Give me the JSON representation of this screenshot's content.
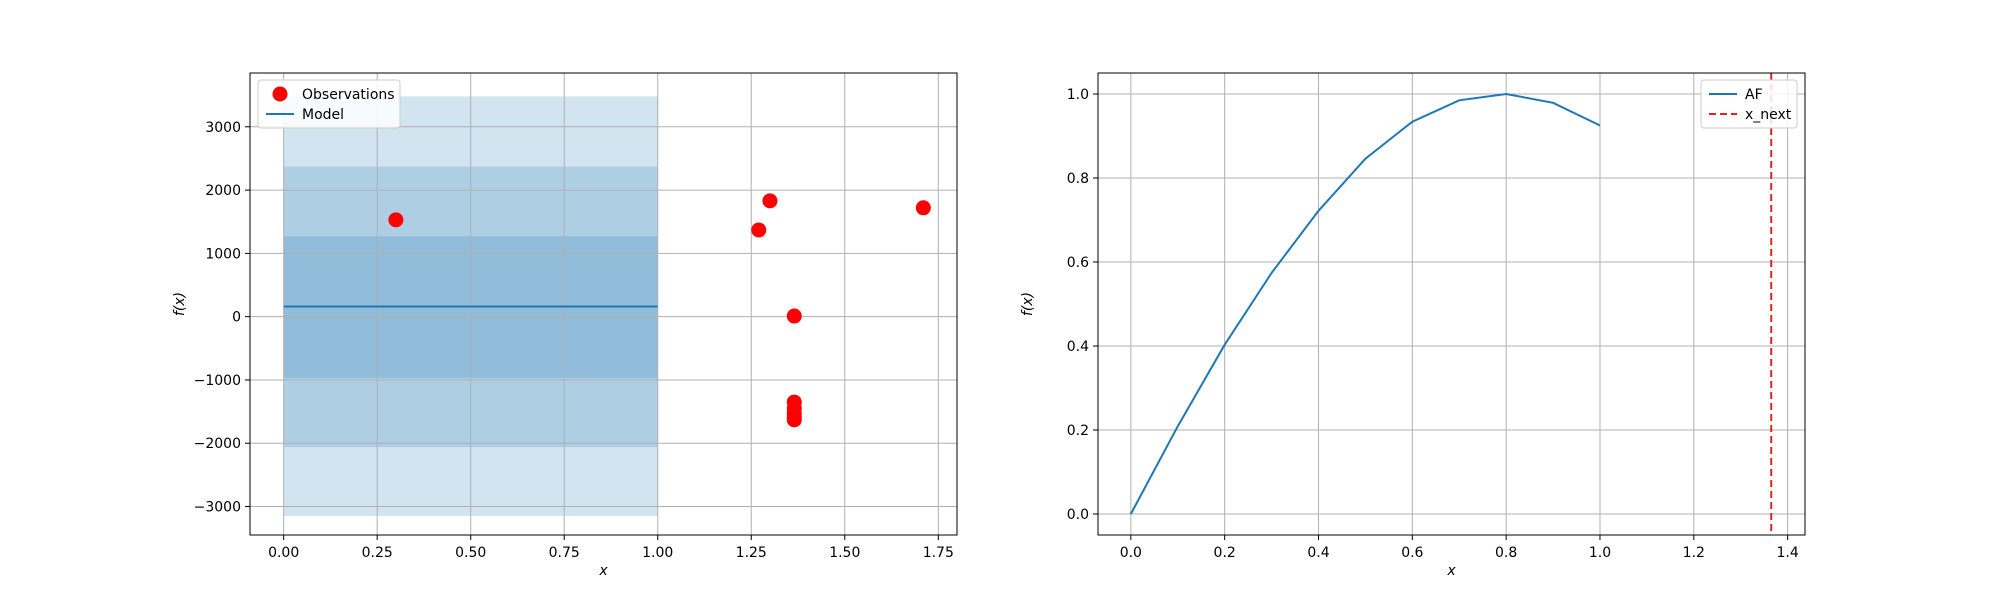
{
  "chart_data": [
    {
      "type": "scatter",
      "xlabel": "x",
      "ylabel": "f(x)",
      "xlim": [
        -0.09,
        1.8
      ],
      "ylim": [
        -3450,
        3850
      ],
      "grid": true,
      "legend_placement": "top-left",
      "xticks": [
        0.0,
        0.25,
        0.5,
        0.75,
        1.0,
        1.25,
        1.5,
        1.75
      ],
      "xtick_labels": [
        "0.00",
        "0.25",
        "0.50",
        "0.75",
        "1.00",
        "1.25",
        "1.50",
        "1.75"
      ],
      "yticks": [
        -3000,
        -2000,
        -1000,
        0,
        1000,
        2000,
        3000
      ],
      "ytick_labels": [
        "−3000",
        "−2000",
        "−1000",
        "0",
        "1000",
        "2000",
        "3000"
      ],
      "colors": {
        "observations": "#ff0000",
        "model": "#1f77b4",
        "band": "#1f77b4"
      },
      "bands": [
        {
          "x_range": [
            0.0,
            1.0
          ],
          "y_range": [
            -3150,
            3480
          ]
        },
        {
          "x_range": [
            0.0,
            1.0
          ],
          "y_range": [
            -2060,
            2370
          ]
        },
        {
          "x_range": [
            0.0,
            1.0
          ],
          "y_range": [
            -970,
            1270
          ]
        }
      ],
      "series": [
        {
          "name": "Observations",
          "kind": "scatter",
          "points": [
            {
              "x": 0.3,
              "y": 1530
            },
            {
              "x": 1.27,
              "y": 1370
            },
            {
              "x": 1.3,
              "y": 1830
            },
            {
              "x": 1.365,
              "y": 10
            },
            {
              "x": 1.365,
              "y": -1350
            },
            {
              "x": 1.365,
              "y": -1450
            },
            {
              "x": 1.365,
              "y": -1530
            },
            {
              "x": 1.365,
              "y": -1580
            },
            {
              "x": 1.365,
              "y": -1630
            },
            {
              "x": 1.71,
              "y": 1720
            }
          ]
        },
        {
          "name": "Model",
          "kind": "line",
          "points": [
            {
              "x": 0.0,
              "y": 160
            },
            {
              "x": 1.0,
              "y": 160
            }
          ]
        }
      ]
    },
    {
      "type": "line",
      "xlabel": "x",
      "ylabel": "f(x)",
      "xlim": [
        -0.07,
        1.437
      ],
      "ylim": [
        -0.05,
        1.05
      ],
      "grid": true,
      "legend_placement": "top-right",
      "xticks": [
        0.0,
        0.2,
        0.4,
        0.6,
        0.8,
        1.0,
        1.2,
        1.4
      ],
      "xtick_labels": [
        "0.0",
        "0.2",
        "0.4",
        "0.6",
        "0.8",
        "1.0",
        "1.2",
        "1.4"
      ],
      "yticks": [
        0.0,
        0.2,
        0.4,
        0.6,
        0.8,
        1.0
      ],
      "ytick_labels": [
        "0.0",
        "0.2",
        "0.4",
        "0.6",
        "0.8",
        "1.0"
      ],
      "colors": {
        "af": "#1f77b4",
        "x_next": "#d62728"
      },
      "series": [
        {
          "name": "AF",
          "kind": "line",
          "points": [
            {
              "x": 0.0,
              "y": 0.0
            },
            {
              "x": 0.1,
              "y": 0.209
            },
            {
              "x": 0.2,
              "y": 0.403
            },
            {
              "x": 0.3,
              "y": 0.574
            },
            {
              "x": 0.4,
              "y": 0.722
            },
            {
              "x": 0.5,
              "y": 0.846
            },
            {
              "x": 0.6,
              "y": 0.934
            },
            {
              "x": 0.7,
              "y": 0.985
            },
            {
              "x": 0.8,
              "y": 1.0
            },
            {
              "x": 0.9,
              "y": 0.979
            },
            {
              "x": 1.0,
              "y": 0.925
            }
          ]
        },
        {
          "name": "x_next",
          "kind": "vline",
          "x": 1.365
        }
      ]
    }
  ]
}
